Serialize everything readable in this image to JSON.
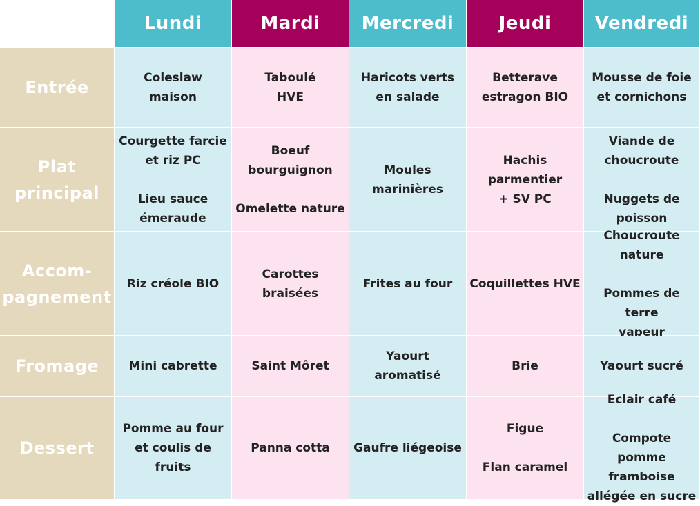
{
  "days": [
    "Lundi",
    "Mardi",
    "Mercredi",
    "Jeudi",
    "Vendredi"
  ],
  "colors": {
    "header_teal": "#4dbdcb",
    "header_plum": "#a5005a",
    "label_beige": "#e4d8bd",
    "cell_blue": "#d4edf2",
    "cell_pink": "#fce3ef"
  },
  "rows": [
    {
      "label": "Entrée",
      "cells": [
        "Coleslaw\nmaison",
        "Taboulé\nHVE",
        "Haricots verts\nen salade",
        "Betterave\nestragon BIO",
        "Mousse de foie\net cornichons"
      ]
    },
    {
      "label": "Plat\nprincipal",
      "cells": [
        "Courgette farcie\net riz PC\n\nLieu sauce\némeraude",
        "Boeuf\nbourguignon\n\nOmelette nature",
        "Moules\nmarinières",
        "Hachis\nparmentier\n+ SV PC",
        "Viande de\nchoucroute\n\nNuggets de\npoisson"
      ]
    },
    {
      "label": "Accom-\npagnement",
      "cells": [
        "Riz créole BIO",
        "Carottes braisées",
        "Frites au four",
        "Coquillettes HVE",
        "Choucroute\nnature\n\nPommes de terre\nvapeur"
      ]
    },
    {
      "label": "Fromage",
      "cells": [
        "Mini cabrette",
        "Saint Môret",
        "Yaourt\naromatisé",
        "Brie",
        "Yaourt sucré"
      ]
    },
    {
      "label": "Dessert",
      "cells": [
        "Pomme au four\net coulis de fruits",
        "Panna cotta",
        "Gaufre liégeoise",
        "Figue\n\nFlan caramel",
        "Eclair café\n\nCompote pomme\nframboise\nallégée en sucre"
      ]
    }
  ]
}
